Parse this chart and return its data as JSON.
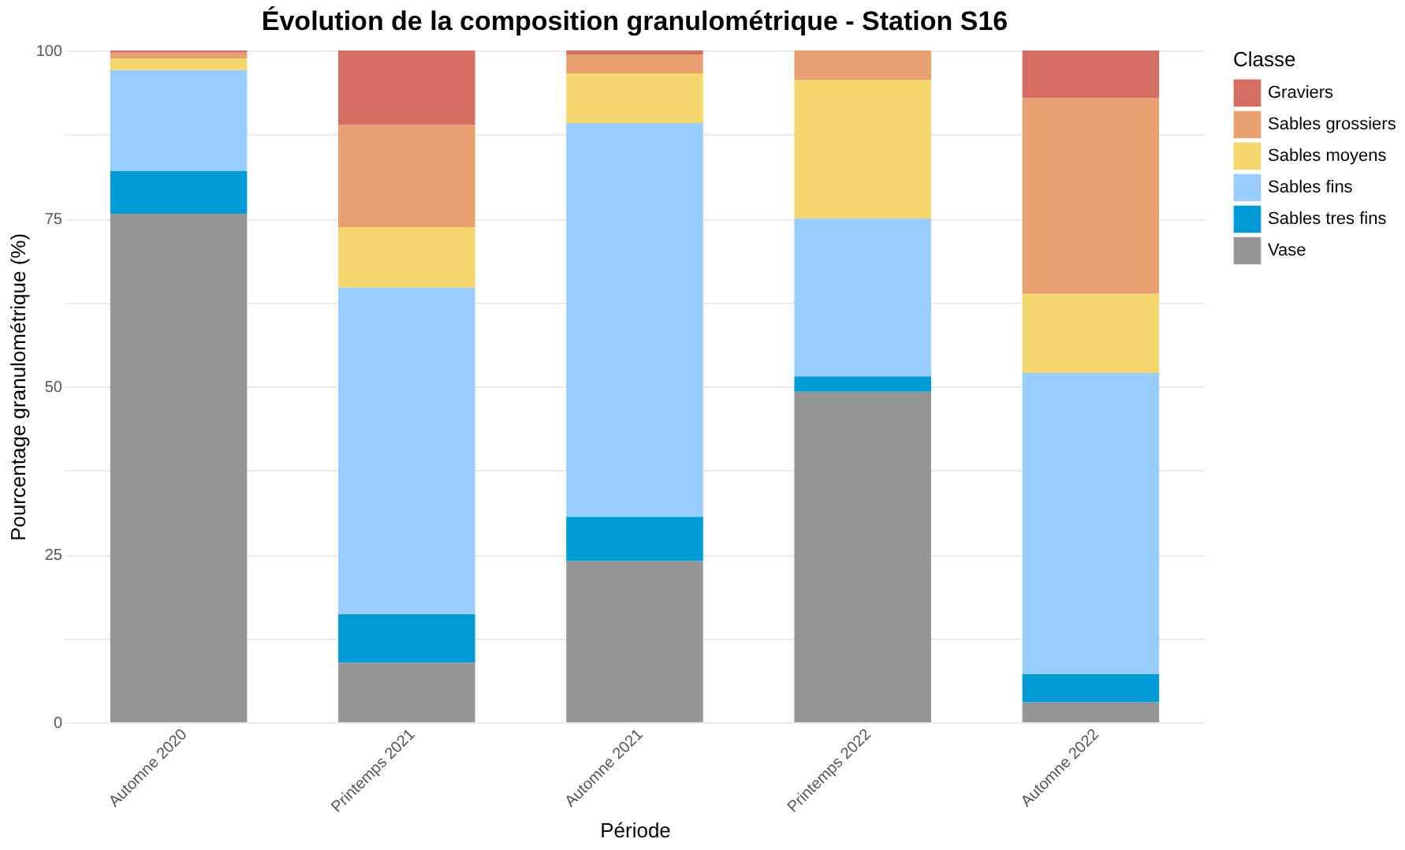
{
  "chart_data": {
    "type": "bar",
    "title": "Évolution de la composition granulométrique - Station S16",
    "xlabel": "Période",
    "ylabel": "Pourcentage granulométrique (%)",
    "legend_title": "Classe",
    "categories": [
      "Automne 2020",
      "Printemps 2021",
      "Automne 2021",
      "Printemps 2022",
      "Automne 2022"
    ],
    "stacked": true,
    "series": [
      {
        "name": "Vase",
        "color": "#969696",
        "values": [
          75.7,
          8.9,
          24.0,
          49.2,
          3.0
        ]
      },
      {
        "name": "Sables tres fins",
        "color": "#009bd6",
        "values": [
          6.4,
          7.2,
          6.6,
          2.3,
          4.2
        ]
      },
      {
        "name": "Sables fins",
        "color": "#99ccff",
        "values": [
          15.0,
          48.6,
          58.6,
          23.5,
          44.8
        ]
      },
      {
        "name": "Sables moyens",
        "color": "#f5d76e",
        "values": [
          1.7,
          9.0,
          7.4,
          20.6,
          11.8
        ]
      },
      {
        "name": "Sables grossiers",
        "color": "#e8a070",
        "values": [
          0.9,
          15.2,
          2.8,
          4.4,
          29.1
        ]
      },
      {
        "name": "Graviers",
        "color": "#d46e63",
        "values": [
          0.3,
          11.1,
          0.6,
          0,
          7.1
        ]
      }
    ],
    "ylim": [
      0,
      100
    ],
    "yticks": [
      0,
      {
        "value": 12.5,
        "label": null
      },
      25,
      {
        "value": 37.5,
        "label": null
      },
      50,
      {
        "value": 62.5,
        "label": null
      },
      75,
      {
        "value": 87.5,
        "label": null
      },
      100
    ],
    "grid": "y",
    "legend": "right"
  }
}
